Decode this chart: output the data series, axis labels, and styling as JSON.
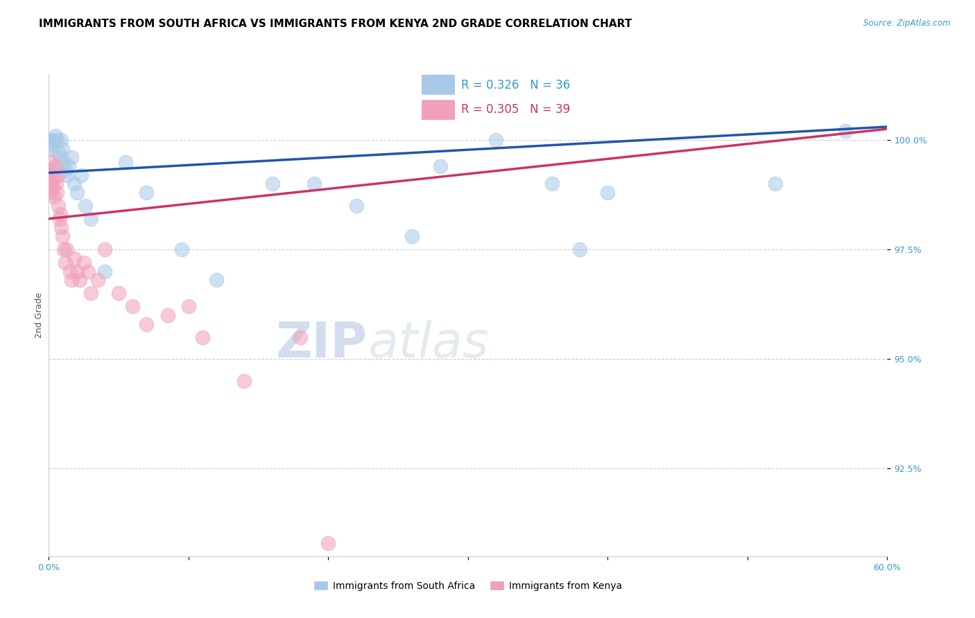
{
  "title": "IMMIGRANTS FROM SOUTH AFRICA VS IMMIGRANTS FROM KENYA 2ND GRADE CORRELATION CHART",
  "source_text": "Source: ZipAtlas.com",
  "ylabel": "2nd Grade",
  "xlim": [
    0.0,
    60.0
  ],
  "ylim": [
    90.5,
    101.5
  ],
  "yticks": [
    92.5,
    95.0,
    97.5,
    100.0
  ],
  "ytick_labels": [
    "92.5%",
    "95.0%",
    "97.5%",
    "100.0%"
  ],
  "xticks": [
    0.0,
    10.0,
    20.0,
    30.0,
    40.0,
    50.0,
    60.0
  ],
  "xtick_labels_show": [
    "0.0%",
    "",
    "",
    "",
    "",
    "",
    "60.0%"
  ],
  "blue_R": 0.326,
  "blue_N": 36,
  "pink_R": 0.305,
  "pink_N": 39,
  "blue_color": "#A8C8E8",
  "pink_color": "#F0A0B8",
  "blue_line_color": "#2255AA",
  "pink_line_color": "#CC3366",
  "legend_box_color": "#EEF4FA",
  "blue_line_x0": 0.0,
  "blue_line_y0": 99.25,
  "blue_line_x1": 60.0,
  "blue_line_y1": 100.3,
  "pink_line_x0": 0.0,
  "pink_line_y0": 98.2,
  "pink_line_x1": 60.0,
  "pink_line_y1": 100.25,
  "blue_scatter_x": [
    0.1,
    0.2,
    0.3,
    0.4,
    0.5,
    0.6,
    0.7,
    0.8,
    0.9,
    1.0,
    1.1,
    1.2,
    1.3,
    1.4,
    1.6,
    1.8,
    2.0,
    2.3,
    2.6,
    3.0,
    4.0,
    5.5,
    7.0,
    9.5,
    12.0,
    16.0,
    19.0,
    22.0,
    26.0,
    28.0,
    32.0,
    36.0,
    38.0,
    40.0,
    52.0,
    57.0
  ],
  "blue_scatter_y": [
    100.0,
    99.8,
    99.9,
    100.0,
    100.1,
    100.0,
    99.7,
    99.6,
    100.0,
    99.8,
    99.5,
    99.3,
    99.2,
    99.4,
    99.6,
    99.0,
    98.8,
    99.2,
    98.5,
    98.2,
    97.0,
    99.5,
    98.8,
    97.5,
    96.8,
    99.0,
    99.0,
    98.5,
    97.8,
    99.4,
    100.0,
    99.0,
    97.5,
    98.8,
    99.0,
    100.2
  ],
  "pink_scatter_x": [
    0.05,
    0.1,
    0.15,
    0.2,
    0.25,
    0.3,
    0.35,
    0.4,
    0.5,
    0.55,
    0.6,
    0.65,
    0.7,
    0.8,
    0.85,
    0.9,
    1.0,
    1.1,
    1.2,
    1.3,
    1.5,
    1.6,
    1.8,
    2.0,
    2.2,
    2.5,
    2.8,
    3.0,
    3.5,
    4.0,
    5.0,
    6.0,
    7.0,
    8.5,
    10.0,
    11.0,
    14.0,
    18.0,
    20.0
  ],
  "pink_scatter_y": [
    99.2,
    98.8,
    99.5,
    99.0,
    99.3,
    98.9,
    99.1,
    98.7,
    99.4,
    99.0,
    98.8,
    99.2,
    98.5,
    98.2,
    98.3,
    98.0,
    97.8,
    97.5,
    97.2,
    97.5,
    97.0,
    96.8,
    97.3,
    97.0,
    96.8,
    97.2,
    97.0,
    96.5,
    96.8,
    97.5,
    96.5,
    96.2,
    95.8,
    96.0,
    96.2,
    95.5,
    94.5,
    95.5,
    90.8
  ],
  "watermark_text_zip": "ZIP",
  "watermark_text_atlas": "atlas",
  "title_fontsize": 11,
  "tick_fontsize": 9,
  "legend_fontsize": 12,
  "ylabel_fontsize": 9
}
